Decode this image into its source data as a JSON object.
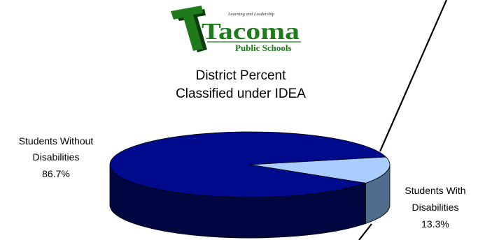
{
  "logo": {
    "tagline": "Learning and Leadership",
    "name": "Tacoma",
    "subtitle": "Public Schools"
  },
  "chart_data": {
    "type": "pie",
    "title_lines": [
      "District Percent",
      "Classified under IDEA"
    ],
    "slices": [
      {
        "label": "Students Without Disabilities",
        "label_lines": [
          "Students Without",
          "Disabilities"
        ],
        "value": 86.7,
        "value_label": "86.7%",
        "top_color": "#000a8c",
        "side_color": "#000640"
      },
      {
        "label": "Students With Disabilities",
        "label_lines": [
          "Students With",
          "Disabilities"
        ],
        "value": 13.3,
        "value_label": "13.3%",
        "top_color": "#a9cdff",
        "side_color": "#506c8c"
      }
    ],
    "style": "3d",
    "legend": "none"
  },
  "colors": {
    "logo_green": "#1e7a1a",
    "logo_dark": "#0d3d0a",
    "connector_line": "#000000"
  }
}
